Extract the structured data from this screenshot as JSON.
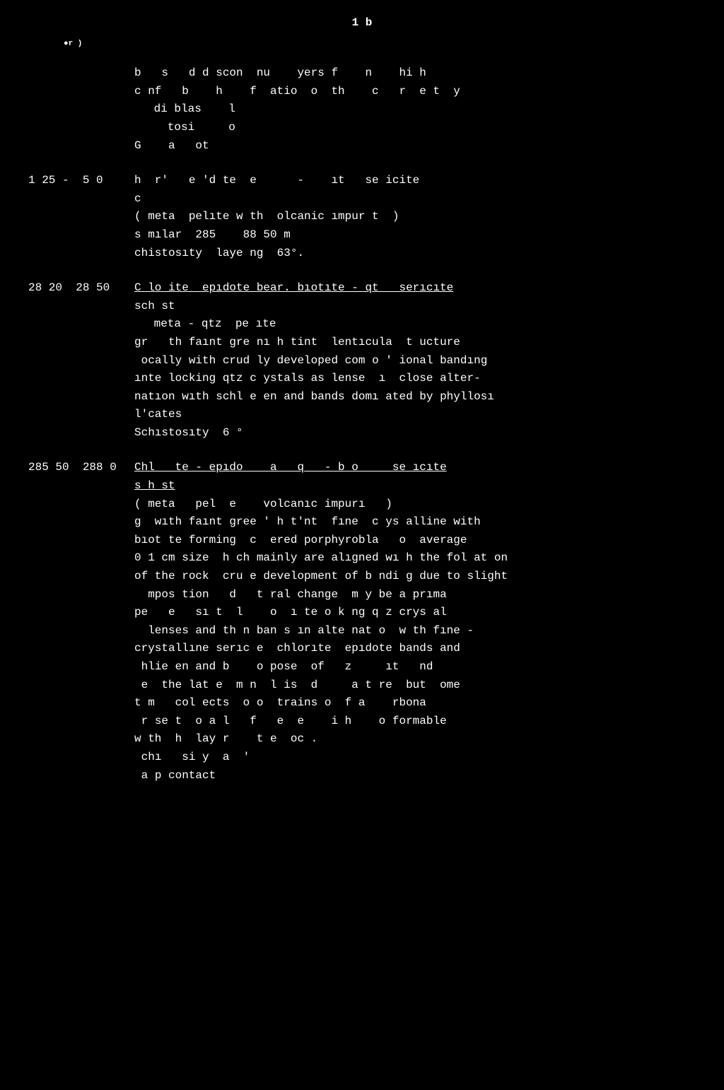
{
  "page_number_text": "1 b",
  "small_marker": "●r )",
  "header_block": {
    "lines": [
      "b   s   d d scon  nu    yers f    n    hi h",
      "c nf   b    h    f  atio  o  th    c   r  e t  y",
      " di blas    l",
      "   tosi     o",
      "G    a   ot"
    ]
  },
  "entries": [
    {
      "depth": "1 25 -  5 0",
      "lines": [
        "h  r'   e 'd te  e      -    ıt   se icite",
        "c",
        "( meta  pelıte w th  olcanic ımpur t  )",
        "s mılar  285    88 50 m",
        "chistosıty  laye ng  63°."
      ]
    },
    {
      "depth": "28 20  28 50",
      "title_underlined": "C lo ite  epıdote bear. bıotıte - qt   serıcıte",
      "lines_after": [
        "sch st",
        " meta - qtz  pe ıte",
        "gr   th faınt gre nı h tint  lentıcula  t ucture",
        " ocally with crud ly developed com o ' ional bandıng",
        "ınte locking qtz c ystals as lense  ı  close alter-",
        "natıon wıth schl e en and bands domı ated by phyllosı",
        "l'cates",
        "Schıstosıty  6 °"
      ]
    },
    {
      "depth": "285 50  288 0",
      "title_underlined": "Chl   te - epıdo    a   q   - b o     se ıcıte",
      "title2_underlined": "s h st",
      "lines_after": [
        "( meta   pel  e    volcanıc impurı   )",
        "g  wıth faınt gree ' h t'nt  fıne  c ys alline with",
        "bıot te forming  c  ered porphyrobla   o  average",
        "0 1 cm size  h ch mainly are alıgned wı h the fol at on",
        "of the rock  cru e development of b ndi g due to slight",
        "  mpos tion   d   t ral change  m y be a prıma",
        "pe   e   sı t  l    o  ı te o k ng q z crys al",
        "  lenses and th n ban s ın alte nat o  w th fıne -",
        "crystallıne serıc e  chlorıte  epıdote bands and",
        " hlie en and b    o pose  of   z     ıt   nd",
        " e  the lat e  m n  l is  d     a t re  but  ome",
        "t m   col ects  o o  trains o  f a    rbona",
        " r se t  o a l   f   e  e    i h    o formable",
        "w th  h  lay r    t e  oc .",
        " chı   si y  a  '",
        " a p contact"
      ]
    }
  ]
}
